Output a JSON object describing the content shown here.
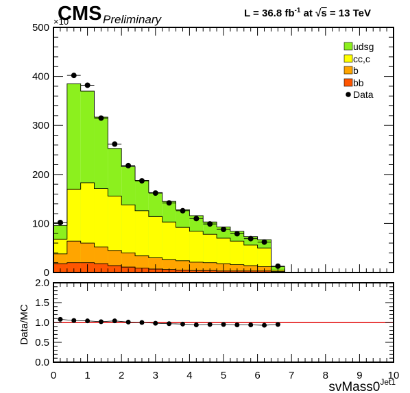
{
  "header": {
    "experiment": "CMS",
    "status": "Preliminary",
    "lumi_prefix": "L = 36.8 fb",
    "lumi_exp": "-1",
    "lumi_at": " at  ",
    "energy_root": "s",
    "energy_value": " = 13 TeV",
    "exponent_label": "×10"
  },
  "legend": {
    "udsg": "udsg",
    "ccc": "cc,c",
    "b": "b",
    "bb": "bb",
    "data": "Data"
  },
  "colors": {
    "udsg": "#8cf01e",
    "ccc": "#ffff00",
    "b": "#ffa500",
    "bb": "#ff5500",
    "ratio_line": "#e00000"
  },
  "chart_data": [
    {
      "type": "bar",
      "subtype": "stacked-histogram",
      "title": "",
      "xlabel": "svMass0",
      "xlabel_sup": "Jet1",
      "ylabel": "",
      "y_scale_note": "×10^3",
      "xlim": [
        0,
        10
      ],
      "ylim": [
        0,
        500
      ],
      "bin_edges": [
        0,
        0.4,
        0.8,
        1.2,
        1.6,
        2.0,
        2.4,
        2.8,
        3.2,
        3.6,
        4.0,
        4.4,
        4.8,
        5.2,
        5.6,
        6.0,
        6.4,
        6.8
      ],
      "series": [
        {
          "name": "bb",
          "values": [
            18,
            20,
            20,
            18,
            14,
            11,
            9,
            7,
            6,
            5,
            4,
            4,
            3,
            3,
            3,
            3,
            1
          ]
        },
        {
          "name": "b",
          "values": [
            38,
            64,
            60,
            52,
            45,
            40,
            34,
            30,
            26,
            24,
            21,
            20,
            18,
            16,
            14,
            12,
            2
          ]
        },
        {
          "name": "cc,c",
          "values": [
            68,
            170,
            183,
            171,
            156,
            138,
            126,
            114,
            103,
            92,
            84,
            78,
            70,
            64,
            56,
            50,
            5
          ]
        },
        {
          "name": "udsg",
          "values": [
            96,
            385,
            370,
            317,
            253,
            216,
            188,
            163,
            145,
            128,
            116,
            103,
            93,
            84,
            73,
            67,
            12
          ]
        }
      ],
      "data_points": {
        "name": "Data",
        "x": [
          0.2,
          0.6,
          1.0,
          1.4,
          1.8,
          2.2,
          2.6,
          3.0,
          3.4,
          3.8,
          4.2,
          4.6,
          5.0,
          5.4,
          5.8,
          6.2,
          6.6
        ],
        "y": [
          102,
          402,
          382,
          315,
          262,
          218,
          187,
          162,
          142,
          126,
          110,
          99,
          88,
          79,
          69,
          62,
          13
        ]
      },
      "y_ticks": [
        "0",
        "100",
        "200",
        "300",
        "400",
        "500"
      ],
      "x_ticks": [
        "0",
        "1",
        "2",
        "3",
        "4",
        "5",
        "6",
        "7",
        "8",
        "9",
        "10"
      ],
      "legend_position": "top-right"
    },
    {
      "type": "scatter",
      "subtype": "ratio",
      "ylabel": "Data/MC",
      "xlim": [
        0,
        10
      ],
      "ylim": [
        0,
        2
      ],
      "x": [
        0.2,
        0.6,
        1.0,
        1.4,
        1.8,
        2.2,
        2.6,
        3.0,
        3.4,
        3.8,
        4.2,
        4.6,
        5.0,
        5.4,
        5.8,
        6.2,
        6.6
      ],
      "y": [
        1.08,
        1.05,
        1.04,
        1.02,
        1.04,
        1.01,
        1.0,
        0.98,
        0.97,
        0.96,
        0.94,
        0.95,
        0.95,
        0.94,
        0.94,
        0.93,
        0.95
      ],
      "reference_line": 1.0,
      "y_ticks": [
        "0.0",
        "0.5",
        "1.0",
        "1.5",
        "2.0"
      ]
    }
  ]
}
